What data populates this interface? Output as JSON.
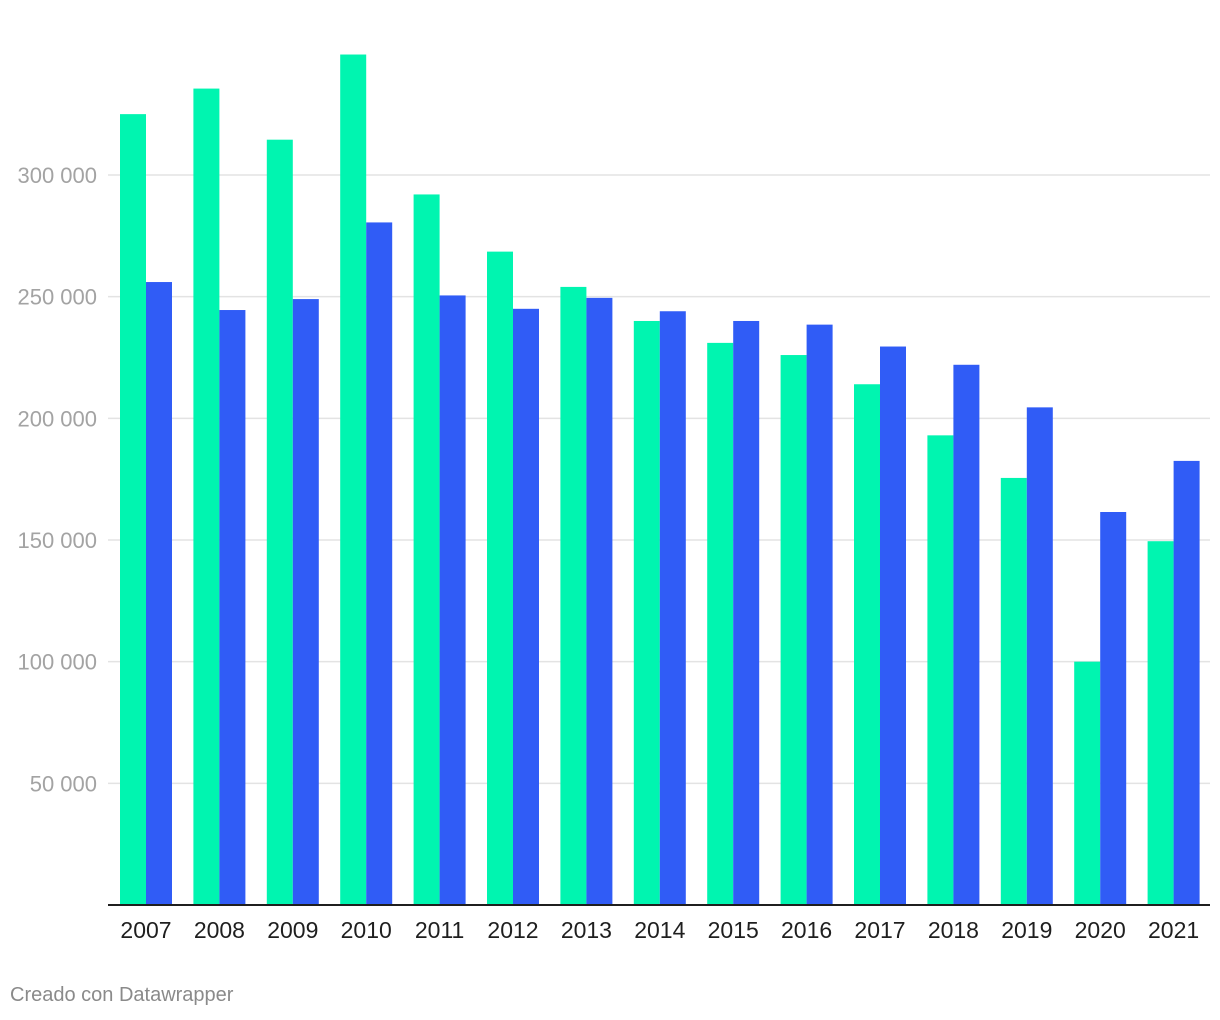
{
  "credit": "Creado con Datawrapper",
  "colors": {
    "series_a": "#00f5b0",
    "series_b": "#305cf6",
    "grid": "#e3e3e3",
    "axis": "#1f1f1f",
    "tick_label": "#a3a3a3"
  },
  "chart_data": {
    "type": "bar",
    "title": "",
    "xlabel": "",
    "ylabel": "",
    "grid": true,
    "legend": "none",
    "categories": [
      "2007",
      "2008",
      "2009",
      "2010",
      "2011",
      "2012",
      "2013",
      "2014",
      "2015",
      "2016",
      "2017",
      "2018",
      "2019",
      "2020",
      "2021"
    ],
    "y_ticks": [
      50000,
      100000,
      150000,
      200000,
      250000,
      300000
    ],
    "y_tick_labels": [
      "50 000",
      "100 000",
      "150 000",
      "200 000",
      "250 000",
      "300 000"
    ],
    "ylim": [
      0,
      353000
    ],
    "series": [
      {
        "color": "#00f5b0",
        "values": [
          325000,
          335500,
          314500,
          349500,
          292000,
          268500,
          254000,
          240000,
          231000,
          226000,
          214000,
          193000,
          175500,
          100000,
          149500
        ]
      },
      {
        "color": "#305cf6",
        "values": [
          256000,
          244500,
          249000,
          280500,
          250500,
          245000,
          249500,
          244000,
          240000,
          238500,
          229500,
          222000,
          204500,
          161500,
          182500
        ]
      }
    ]
  }
}
